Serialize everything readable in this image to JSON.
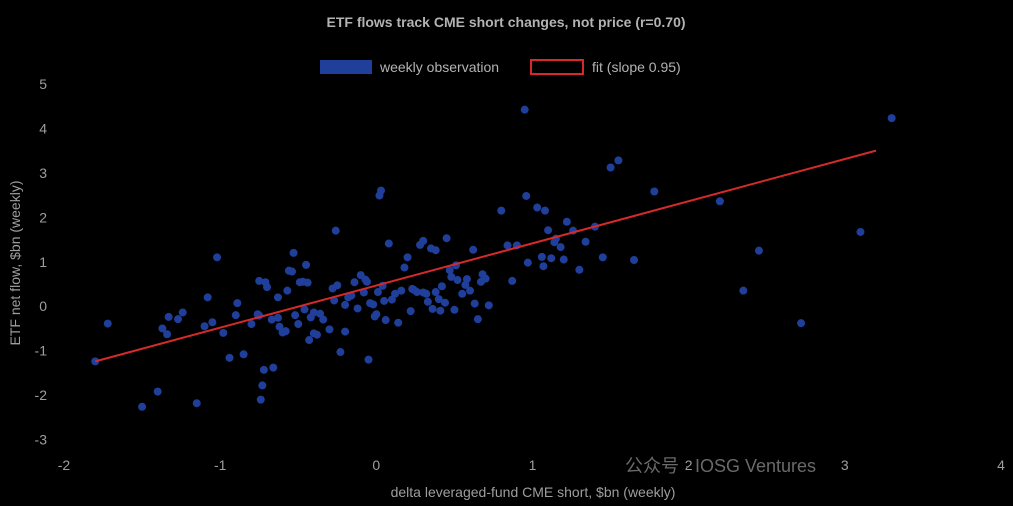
{
  "chart_data": {
    "type": "scatter",
    "title": "ETF flows track CME short changes, not price (r=0.70)",
    "xlabel": "delta leveraged-fund CME short, $bn (weekly)",
    "ylabel": "ETF net flow, $bn (weekly)",
    "xlim": [
      -2,
      4
    ],
    "ylim": [
      -3.3,
      5.2
    ],
    "x_ticks": [
      "-2",
      "-1",
      "0",
      "1",
      "2",
      "3",
      "4"
    ],
    "y_ticks": [
      "-3",
      "-2",
      "-1",
      "0",
      "1",
      "2",
      "3",
      "4",
      "5"
    ],
    "grid": false,
    "legend_position": "top-center",
    "colors": {
      "points": "#1f3f9a",
      "fit": "#d62a2a"
    },
    "series": [
      {
        "name": "weekly observation",
        "points": [
          [
            -1.8,
            -1.24
          ],
          [
            -1.72,
            -0.39
          ],
          [
            -1.5,
            -2.26
          ],
          [
            -1.4,
            -1.92
          ],
          [
            -1.37,
            -0.5
          ],
          [
            -1.34,
            -0.63
          ],
          [
            -1.33,
            -0.24
          ],
          [
            -1.27,
            -0.29
          ],
          [
            -1.24,
            -0.14
          ],
          [
            -1.15,
            -2.18
          ],
          [
            -1.1,
            -0.45
          ],
          [
            -1.08,
            0.2
          ],
          [
            -1.05,
            -0.36
          ],
          [
            -1.02,
            1.1
          ],
          [
            -0.98,
            -0.6
          ],
          [
            -0.94,
            -1.16
          ],
          [
            -0.9,
            -0.2
          ],
          [
            -0.89,
            0.07
          ],
          [
            -0.85,
            -1.08
          ],
          [
            -0.8,
            -0.4
          ],
          [
            -0.76,
            -0.18
          ],
          [
            -0.75,
            -0.21
          ],
          [
            -0.75,
            0.57
          ],
          [
            -0.74,
            -2.1
          ],
          [
            -0.73,
            -1.78
          ],
          [
            -0.72,
            -1.43
          ],
          [
            -0.71,
            0.54
          ],
          [
            -0.7,
            0.43
          ],
          [
            -0.67,
            -0.3
          ],
          [
            -0.66,
            -1.38
          ],
          [
            -0.63,
            -0.26
          ],
          [
            -0.63,
            0.2
          ],
          [
            -0.62,
            -0.46
          ],
          [
            -0.6,
            -0.59
          ],
          [
            -0.58,
            -0.56
          ],
          [
            -0.57,
            0.35
          ],
          [
            -0.56,
            0.8
          ],
          [
            -0.54,
            0.78
          ],
          [
            -0.53,
            1.2
          ],
          [
            -0.52,
            -0.2
          ],
          [
            -0.5,
            -0.4
          ],
          [
            -0.49,
            0.54
          ],
          [
            -0.47,
            0.55
          ],
          [
            -0.46,
            -0.07
          ],
          [
            -0.45,
            0.93
          ],
          [
            -0.44,
            0.53
          ],
          [
            -0.43,
            -0.76
          ],
          [
            -0.42,
            -0.25
          ],
          [
            -0.4,
            -0.14
          ],
          [
            -0.4,
            -0.61
          ],
          [
            -0.38,
            -0.64
          ],
          [
            -0.36,
            -0.17
          ],
          [
            -0.34,
            -0.3
          ],
          [
            -0.3,
            -0.52
          ],
          [
            -0.28,
            0.4
          ],
          [
            -0.27,
            0.13
          ],
          [
            -0.26,
            1.7
          ],
          [
            -0.25,
            0.47
          ],
          [
            -0.23,
            -1.03
          ],
          [
            -0.2,
            -0.57
          ],
          [
            -0.2,
            0.03
          ],
          [
            -0.18,
            0.2
          ],
          [
            -0.16,
            0.24
          ],
          [
            -0.14,
            0.54
          ],
          [
            -0.12,
            -0.05
          ],
          [
            -0.1,
            0.7
          ],
          [
            -0.08,
            0.31
          ],
          [
            -0.07,
            0.6
          ],
          [
            -0.06,
            0.55
          ],
          [
            -0.05,
            -1.2
          ],
          [
            -0.04,
            0.07
          ],
          [
            -0.02,
            0.04
          ],
          [
            -0.01,
            -0.23
          ],
          [
            0.0,
            -0.18
          ],
          [
            0.01,
            0.32
          ],
          [
            0.02,
            2.49
          ],
          [
            0.03,
            2.6
          ],
          [
            0.04,
            0.46
          ],
          [
            0.05,
            0.12
          ],
          [
            0.06,
            -0.31
          ],
          [
            0.08,
            1.41
          ],
          [
            0.1,
            0.15
          ],
          [
            0.12,
            0.28
          ],
          [
            0.14,
            -0.37
          ],
          [
            0.16,
            0.35
          ],
          [
            0.18,
            0.87
          ],
          [
            0.2,
            1.1
          ],
          [
            0.22,
            -0.11
          ],
          [
            0.23,
            0.39
          ],
          [
            0.24,
            0.37
          ],
          [
            0.26,
            0.32
          ],
          [
            0.28,
            1.38
          ],
          [
            0.3,
            0.31
          ],
          [
            0.3,
            1.47
          ],
          [
            0.32,
            0.28
          ],
          [
            0.33,
            0.1
          ],
          [
            0.35,
            1.3
          ],
          [
            0.36,
            -0.06
          ],
          [
            0.38,
            1.26
          ],
          [
            0.38,
            0.32
          ],
          [
            0.4,
            0.16
          ],
          [
            0.41,
            -0.1
          ],
          [
            0.42,
            0.45
          ],
          [
            0.44,
            0.08
          ],
          [
            0.45,
            1.53
          ],
          [
            0.47,
            0.81
          ],
          [
            0.48,
            0.66
          ],
          [
            0.5,
            -0.08
          ],
          [
            0.51,
            0.92
          ],
          [
            0.52,
            0.59
          ],
          [
            0.55,
            0.28
          ],
          [
            0.57,
            0.48
          ],
          [
            0.58,
            0.61
          ],
          [
            0.6,
            0.35
          ],
          [
            0.62,
            1.27
          ],
          [
            0.63,
            0.06
          ],
          [
            0.65,
            -0.29
          ],
          [
            0.67,
            0.55
          ],
          [
            0.68,
            0.72
          ],
          [
            0.7,
            0.62
          ],
          [
            0.72,
            0.02
          ],
          [
            0.8,
            2.15
          ],
          [
            0.84,
            1.37
          ],
          [
            0.87,
            0.57
          ],
          [
            0.9,
            1.37
          ],
          [
            0.95,
            4.42
          ],
          [
            0.96,
            2.48
          ],
          [
            0.97,
            0.98
          ],
          [
            1.03,
            2.22
          ],
          [
            1.06,
            1.11
          ],
          [
            1.07,
            0.9
          ],
          [
            1.08,
            2.15
          ],
          [
            1.1,
            1.71
          ],
          [
            1.12,
            1.08
          ],
          [
            1.14,
            1.44
          ],
          [
            1.15,
            1.52
          ],
          [
            1.18,
            1.33
          ],
          [
            1.2,
            1.05
          ],
          [
            1.22,
            1.9
          ],
          [
            1.26,
            1.7
          ],
          [
            1.3,
            0.82
          ],
          [
            1.34,
            1.45
          ],
          [
            1.4,
            1.79
          ],
          [
            1.45,
            1.1
          ],
          [
            1.5,
            3.12
          ],
          [
            1.55,
            3.28
          ],
          [
            1.65,
            1.04
          ],
          [
            1.78,
            2.58
          ],
          [
            2.2,
            2.36
          ],
          [
            2.35,
            0.35
          ],
          [
            2.45,
            1.25
          ],
          [
            2.72,
            -0.38
          ],
          [
            3.1,
            1.67
          ],
          [
            3.3,
            4.23
          ]
        ]
      },
      {
        "name": "fit (slope 0.95)",
        "line": [
          [
            -1.8,
            -1.24
          ],
          [
            3.2,
            3.5
          ]
        ]
      }
    ]
  },
  "watermark": {
    "text": "公众号 · IOSG Ventures"
  }
}
